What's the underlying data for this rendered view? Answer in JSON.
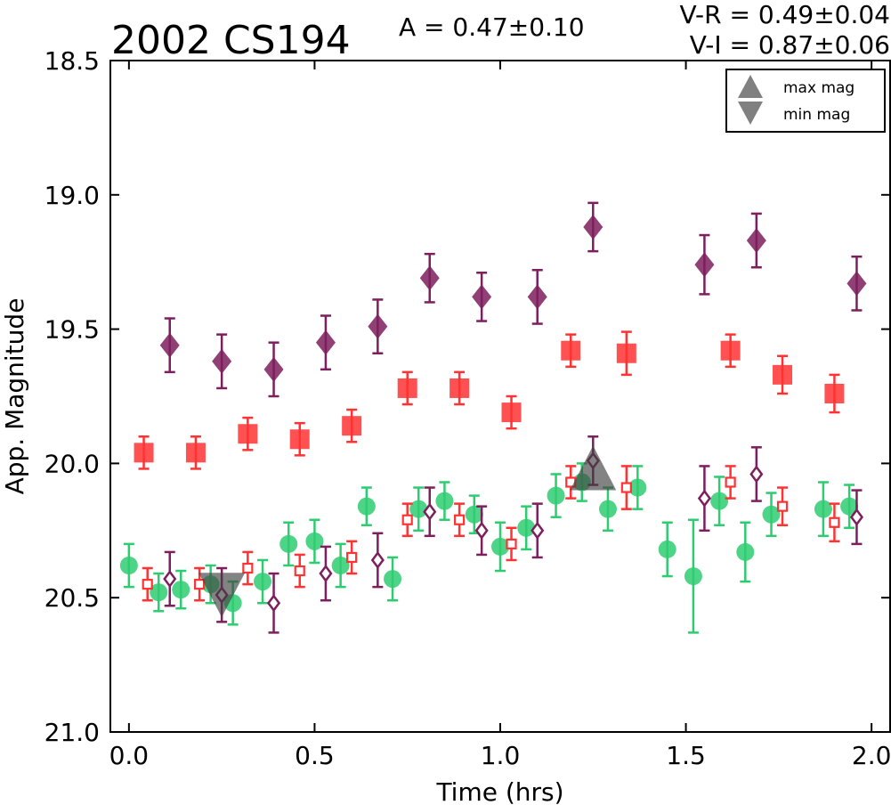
{
  "chart_data": {
    "type": "scatter",
    "title": "2002 CS194",
    "amplitude_label": "A  = 0.47±0.10",
    "color_labels": [
      "V-R = 0.49±0.04",
      "V-I  = 0.87±0.06"
    ],
    "xlabel": "Time (hrs)",
    "ylabel": "App. Magnitude",
    "xlim": [
      -0.05,
      2.05
    ],
    "ylim": [
      21.0,
      18.5
    ],
    "y_inverted": true,
    "x_ticks": [
      0.0,
      0.5,
      1.0,
      1.5,
      2.0
    ],
    "x_tick_labels": [
      "0.0",
      "0.5",
      "1.0",
      "1.5",
      "2.0"
    ],
    "y_ticks": [
      18.5,
      19.0,
      19.5,
      20.0,
      20.5,
      21.0
    ],
    "y_tick_labels": [
      "18.5",
      "19.0",
      "19.5",
      "20.0",
      "20.5",
      "21.0"
    ],
    "grid": false,
    "legend": {
      "placement": "top-right",
      "entries": [
        {
          "label": "max mag",
          "marker": "triangle-up",
          "color": "#808080"
        },
        {
          "label": "min mag",
          "marker": "triangle-down",
          "color": "#808080"
        }
      ]
    },
    "markers": {
      "max": {
        "x": 1.25,
        "y": 20.06
      },
      "min": {
        "x": 0.25,
        "y": 20.5
      }
    },
    "series": [
      {
        "marker": "diamond-filled",
        "color": "#7d1f5d",
        "points": [
          {
            "x": 0.11,
            "y": 19.56,
            "err": 0.1
          },
          {
            "x": 0.25,
            "y": 19.62,
            "err": 0.1
          },
          {
            "x": 0.39,
            "y": 19.65,
            "err": 0.1
          },
          {
            "x": 0.53,
            "y": 19.55,
            "err": 0.1
          },
          {
            "x": 0.67,
            "y": 19.49,
            "err": 0.1
          },
          {
            "x": 0.81,
            "y": 19.31,
            "err": 0.09
          },
          {
            "x": 0.95,
            "y": 19.38,
            "err": 0.09
          },
          {
            "x": 1.1,
            "y": 19.38,
            "err": 0.1
          },
          {
            "x": 1.25,
            "y": 19.12,
            "err": 0.09
          },
          {
            "x": 1.55,
            "y": 19.26,
            "err": 0.11
          },
          {
            "x": 1.69,
            "y": 19.17,
            "err": 0.1
          },
          {
            "x": 1.96,
            "y": 19.33,
            "err": 0.1
          }
        ]
      },
      {
        "marker": "square-filled",
        "color": "#ff3333",
        "points": [
          {
            "x": 0.04,
            "y": 19.96,
            "err": 0.06
          },
          {
            "x": 0.18,
            "y": 19.96,
            "err": 0.06
          },
          {
            "x": 0.32,
            "y": 19.89,
            "err": 0.06
          },
          {
            "x": 0.46,
            "y": 19.91,
            "err": 0.06
          },
          {
            "x": 0.6,
            "y": 19.86,
            "err": 0.06
          },
          {
            "x": 0.75,
            "y": 19.72,
            "err": 0.06
          },
          {
            "x": 0.89,
            "y": 19.72,
            "err": 0.06
          },
          {
            "x": 1.03,
            "y": 19.81,
            "err": 0.06
          },
          {
            "x": 1.19,
            "y": 19.58,
            "err": 0.06
          },
          {
            "x": 1.34,
            "y": 19.59,
            "err": 0.08
          },
          {
            "x": 1.62,
            "y": 19.58,
            "err": 0.06
          },
          {
            "x": 1.76,
            "y": 19.67,
            "err": 0.07
          },
          {
            "x": 1.9,
            "y": 19.74,
            "err": 0.07
          }
        ]
      },
      {
        "marker": "circle-filled",
        "color": "#2ecc71",
        "points": [
          {
            "x": 0.0,
            "y": 20.38,
            "err": 0.08
          },
          {
            "x": 0.08,
            "y": 20.48,
            "err": 0.07
          },
          {
            "x": 0.14,
            "y": 20.47,
            "err": 0.07
          },
          {
            "x": 0.22,
            "y": 20.45,
            "err": 0.07
          },
          {
            "x": 0.28,
            "y": 20.52,
            "err": 0.08
          },
          {
            "x": 0.36,
            "y": 20.44,
            "err": 0.08
          },
          {
            "x": 0.43,
            "y": 20.3,
            "err": 0.08
          },
          {
            "x": 0.5,
            "y": 20.29,
            "err": 0.08
          },
          {
            "x": 0.57,
            "y": 20.38,
            "err": 0.08
          },
          {
            "x": 0.64,
            "y": 20.16,
            "err": 0.07
          },
          {
            "x": 0.71,
            "y": 20.43,
            "err": 0.08
          },
          {
            "x": 0.78,
            "y": 20.17,
            "err": 0.08
          },
          {
            "x": 0.85,
            "y": 20.14,
            "err": 0.07
          },
          {
            "x": 0.93,
            "y": 20.19,
            "err": 0.07
          },
          {
            "x": 1.0,
            "y": 20.31,
            "err": 0.09
          },
          {
            "x": 1.07,
            "y": 20.24,
            "err": 0.08
          },
          {
            "x": 1.15,
            "y": 20.12,
            "err": 0.08
          },
          {
            "x": 1.22,
            "y": 20.07,
            "err": 0.07
          },
          {
            "x": 1.29,
            "y": 20.17,
            "err": 0.08
          },
          {
            "x": 1.37,
            "y": 20.09,
            "err": 0.08
          },
          {
            "x": 1.45,
            "y": 20.32,
            "err": 0.1
          },
          {
            "x": 1.52,
            "y": 20.42,
            "err": 0.21
          },
          {
            "x": 1.59,
            "y": 20.14,
            "err": 0.09
          },
          {
            "x": 1.66,
            "y": 20.33,
            "err": 0.11
          },
          {
            "x": 1.73,
            "y": 20.19,
            "err": 0.08
          },
          {
            "x": 1.87,
            "y": 20.17,
            "err": 0.1
          },
          {
            "x": 1.94,
            "y": 20.16,
            "err": 0.08
          }
        ]
      },
      {
        "marker": "square-open",
        "color": "#ff3333",
        "points": [
          {
            "x": 0.05,
            "y": 20.45,
            "err": 0.06
          },
          {
            "x": 0.19,
            "y": 20.45,
            "err": 0.06
          },
          {
            "x": 0.32,
            "y": 20.39,
            "err": 0.06
          },
          {
            "x": 0.46,
            "y": 20.4,
            "err": 0.06
          },
          {
            "x": 0.6,
            "y": 20.35,
            "err": 0.06
          },
          {
            "x": 0.75,
            "y": 20.21,
            "err": 0.06
          },
          {
            "x": 0.89,
            "y": 20.21,
            "err": 0.06
          },
          {
            "x": 1.03,
            "y": 20.3,
            "err": 0.06
          },
          {
            "x": 1.19,
            "y": 20.07,
            "err": 0.06
          },
          {
            "x": 1.34,
            "y": 20.09,
            "err": 0.08
          },
          {
            "x": 1.62,
            "y": 20.07,
            "err": 0.06
          },
          {
            "x": 1.76,
            "y": 20.16,
            "err": 0.07
          },
          {
            "x": 1.9,
            "y": 20.22,
            "err": 0.07
          }
        ]
      },
      {
        "marker": "diamond-open",
        "color": "#7d1f5d",
        "points": [
          {
            "x": 0.11,
            "y": 20.43,
            "err": 0.1
          },
          {
            "x": 0.25,
            "y": 20.49,
            "err": 0.1
          },
          {
            "x": 0.39,
            "y": 20.52,
            "err": 0.11
          },
          {
            "x": 0.53,
            "y": 20.41,
            "err": 0.1
          },
          {
            "x": 0.67,
            "y": 20.36,
            "err": 0.1
          },
          {
            "x": 0.81,
            "y": 20.18,
            "err": 0.09
          },
          {
            "x": 0.95,
            "y": 20.25,
            "err": 0.09
          },
          {
            "x": 1.1,
            "y": 20.25,
            "err": 0.1
          },
          {
            "x": 1.25,
            "y": 19.99,
            "err": 0.09
          },
          {
            "x": 1.55,
            "y": 20.13,
            "err": 0.12
          },
          {
            "x": 1.69,
            "y": 20.04,
            "err": 0.1
          },
          {
            "x": 1.96,
            "y": 20.2,
            "err": 0.1
          }
        ]
      }
    ]
  }
}
